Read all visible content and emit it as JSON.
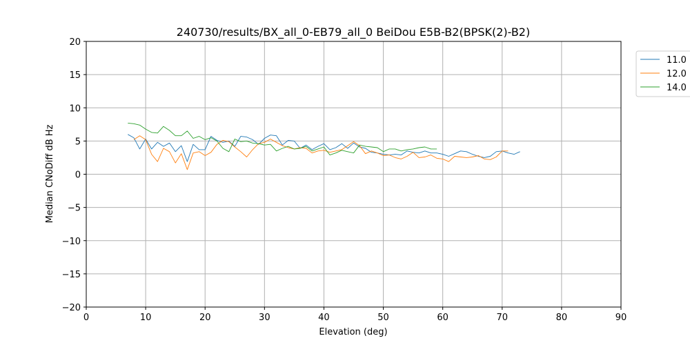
{
  "chart_data": {
    "type": "line",
    "title": "240730/results/BX_all_0-EB79_all_0 BeiDou E5B-B2(BPSK(2)-B2)",
    "xlabel": "Elevation (deg)",
    "ylabel": "Median CNoDiff dB Hz",
    "xlim": [
      0,
      90
    ],
    "ylim": [
      -20,
      20
    ],
    "xticks": [
      "0",
      "10",
      "20",
      "30",
      "40",
      "50",
      "60",
      "70",
      "80",
      "90"
    ],
    "yticks": [
      "20",
      "15",
      "10",
      "5",
      "0",
      "−5",
      "−10",
      "−15",
      "−20"
    ],
    "grid": true,
    "legend_position": "upper right, outside plot",
    "series": [
      {
        "name": "11.0",
        "color": "#1f77b4",
        "x": [
          7,
          8,
          9,
          10,
          11,
          12,
          13,
          14,
          15,
          16,
          17,
          18,
          19,
          20,
          21,
          22,
          23,
          24,
          25,
          26,
          27,
          28,
          29,
          30,
          31,
          32,
          33,
          34,
          35,
          36,
          37,
          38,
          39,
          40,
          41,
          42,
          43,
          44,
          45,
          46,
          47,
          48,
          49,
          50,
          51,
          52,
          53,
          54,
          55,
          56,
          57,
          58,
          59,
          60,
          61,
          62,
          63,
          64,
          65,
          66,
          67,
          68,
          69,
          70,
          71,
          72,
          73
        ],
        "y": [
          6.0,
          5.5,
          3.8,
          5.3,
          3.8,
          4.8,
          4.2,
          4.7,
          3.4,
          4.3,
          1.9,
          4.5,
          3.7,
          3.7,
          5.7,
          5.1,
          4.8,
          5.0,
          4.2,
          5.7,
          5.6,
          5.2,
          4.5,
          5.4,
          5.9,
          5.8,
          4.4,
          5.1,
          5.0,
          3.9,
          4.4,
          3.7,
          4.2,
          4.6,
          3.7,
          4.0,
          4.6,
          3.9,
          4.7,
          4.1,
          3.9,
          3.3,
          3.2,
          3.0,
          2.9,
          3.0,
          2.9,
          3.5,
          3.3,
          3.2,
          3.5,
          3.2,
          3.2,
          3.0,
          2.7,
          3.1,
          3.5,
          3.4,
          3.0,
          2.7,
          2.5,
          2.7,
          3.4,
          3.5,
          3.2,
          3.0,
          3.4
        ]
      },
      {
        "name": "12.0",
        "color": "#ff7f0e",
        "x": [
          8,
          9,
          10,
          11,
          12,
          13,
          14,
          15,
          16,
          17,
          18,
          19,
          20,
          21,
          22,
          23,
          24,
          25,
          26,
          27,
          28,
          29,
          30,
          31,
          32,
          33,
          34,
          35,
          36,
          37,
          38,
          39,
          40,
          41,
          42,
          43,
          44,
          45,
          46,
          47,
          48,
          49,
          50,
          51,
          52,
          53,
          54,
          55,
          56,
          57,
          58,
          59,
          60,
          61,
          62,
          63,
          64,
          65,
          66,
          67,
          68,
          69,
          70,
          71
        ],
        "y": [
          5.2,
          5.8,
          5.2,
          3.0,
          1.9,
          3.9,
          3.4,
          1.7,
          3.1,
          0.7,
          3.2,
          3.4,
          2.8,
          3.3,
          4.5,
          5.1,
          4.9,
          4.1,
          3.4,
          2.6,
          3.7,
          4.6,
          4.8,
          5.3,
          4.8,
          4.3,
          4.0,
          3.8,
          4.0,
          3.9,
          3.2,
          3.5,
          3.6,
          3.3,
          3.5,
          3.7,
          4.3,
          4.9,
          4.3,
          3.1,
          3.5,
          3.2,
          2.8,
          2.9,
          2.5,
          2.3,
          2.7,
          3.3,
          2.5,
          2.6,
          2.9,
          2.4,
          2.3,
          1.9,
          2.7,
          2.6,
          2.5,
          2.6,
          2.8,
          2.3,
          2.2,
          2.6,
          3.5,
          3.5
        ]
      },
      {
        "name": "14.0",
        "color": "#2ca02c",
        "x": [
          7,
          8,
          9,
          10,
          11,
          12,
          13,
          14,
          15,
          16,
          17,
          18,
          19,
          20,
          21,
          22,
          23,
          24,
          25,
          26,
          27,
          28,
          29,
          30,
          31,
          32,
          33,
          34,
          35,
          36,
          37,
          38,
          39,
          40,
          41,
          42,
          43,
          44,
          45,
          46,
          47,
          48,
          49,
          50,
          51,
          52,
          53,
          54,
          55,
          56,
          57,
          58,
          59
        ],
        "y": [
          7.7,
          7.6,
          7.4,
          6.8,
          6.3,
          6.2,
          7.2,
          6.6,
          5.8,
          5.8,
          6.5,
          5.4,
          5.7,
          5.2,
          5.5,
          5.0,
          3.9,
          3.4,
          5.3,
          4.9,
          5.0,
          4.7,
          4.6,
          4.4,
          4.5,
          3.5,
          3.9,
          4.2,
          3.8,
          3.9,
          4.2,
          3.5,
          3.8,
          4.1,
          2.9,
          3.2,
          3.6,
          3.4,
          3.2,
          4.4,
          4.2,
          4.1,
          4.0,
          3.4,
          3.8,
          3.8,
          3.5,
          3.7,
          3.8,
          4.0,
          4.1,
          3.8,
          3.8
        ]
      }
    ]
  }
}
